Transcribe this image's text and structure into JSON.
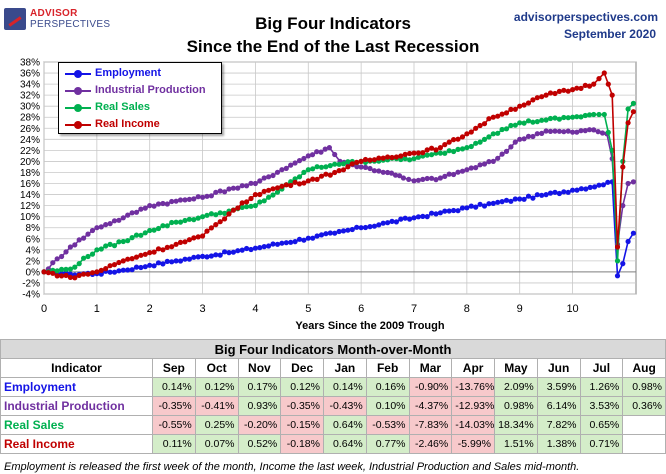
{
  "header": {
    "logo_line1": "ADVISOR",
    "logo_line2": "PERSPECTIVES",
    "title_line1": "Big Four Indicators",
    "title_line2": "Since the End of the Last Recession",
    "site": "advisorperspectives.com",
    "date": "September 2020"
  },
  "chart_data": {
    "type": "line",
    "xlabel": "Years Since the 2009 Trough",
    "ylabel": "",
    "xlim": [
      0,
      11.2
    ],
    "ylim": [
      -4,
      38
    ],
    "x_ticks": [
      0,
      1,
      2,
      3,
      4,
      5,
      6,
      7,
      8,
      9,
      10
    ],
    "y_ticks": [
      -4,
      -2,
      0,
      2,
      4,
      6,
      8,
      10,
      12,
      14,
      16,
      18,
      20,
      22,
      24,
      26,
      28,
      30,
      32,
      34,
      36,
      38
    ],
    "y_tick_format": "percent",
    "grid": true,
    "legend_position": "top-left",
    "series": [
      {
        "name": "Employment",
        "color": "#1414e6",
        "points": [
          [
            0,
            0
          ],
          [
            0.5,
            -0.4
          ],
          [
            1,
            -0.3
          ],
          [
            1.5,
            0.3
          ],
          [
            2,
            1.2
          ],
          [
            2.5,
            2
          ],
          [
            3,
            2.8
          ],
          [
            3.5,
            3.5
          ],
          [
            4,
            4.3
          ],
          [
            4.5,
            5.2
          ],
          [
            5,
            6.1
          ],
          [
            5.5,
            7
          ],
          [
            6,
            8
          ],
          [
            6.5,
            8.9
          ],
          [
            7,
            9.8
          ],
          [
            7.5,
            10.7
          ],
          [
            8,
            11.6
          ],
          [
            8.5,
            12.4
          ],
          [
            9,
            13.2
          ],
          [
            9.5,
            14
          ],
          [
            10,
            14.8
          ],
          [
            10.5,
            15.7
          ],
          [
            10.75,
            16.3
          ],
          [
            10.85,
            -0.7
          ],
          [
            10.95,
            1.5
          ],
          [
            11.05,
            5.5
          ],
          [
            11.15,
            7
          ]
        ]
      },
      {
        "name": "Industrial Production",
        "color": "#7030a0",
        "points": [
          [
            0,
            0
          ],
          [
            0.5,
            4.5
          ],
          [
            1,
            8
          ],
          [
            1.5,
            9.8
          ],
          [
            2,
            12
          ],
          [
            2.5,
            12.8
          ],
          [
            3,
            13.5
          ],
          [
            3.5,
            15
          ],
          [
            4,
            16
          ],
          [
            4.5,
            18.5
          ],
          [
            5,
            21
          ],
          [
            5.4,
            22.5
          ],
          [
            5.6,
            20
          ],
          [
            6,
            19
          ],
          [
            6.5,
            18
          ],
          [
            6.8,
            17
          ],
          [
            7,
            16.5
          ],
          [
            7.5,
            17
          ],
          [
            8,
            18.5
          ],
          [
            8.5,
            20
          ],
          [
            9,
            24
          ],
          [
            9.5,
            25.5
          ],
          [
            10,
            25.3
          ],
          [
            10.4,
            25.7
          ],
          [
            10.65,
            25
          ],
          [
            10.75,
            20.5
          ],
          [
            10.85,
            5
          ],
          [
            10.95,
            12
          ],
          [
            11.05,
            16
          ],
          [
            11.15,
            16.3
          ]
        ]
      },
      {
        "name": "Real Sales",
        "color": "#00b050",
        "points": [
          [
            0,
            0
          ],
          [
            0.5,
            0.5
          ],
          [
            1,
            4
          ],
          [
            1.5,
            5.5
          ],
          [
            2,
            7.5
          ],
          [
            2.5,
            9
          ],
          [
            3,
            10
          ],
          [
            3.5,
            11
          ],
          [
            4,
            12
          ],
          [
            4.5,
            15
          ],
          [
            5,
            18.5
          ],
          [
            5.5,
            19.5
          ],
          [
            6,
            20
          ],
          [
            6.5,
            20.3
          ],
          [
            7,
            20.5
          ],
          [
            7.5,
            21.5
          ],
          [
            8,
            22.5
          ],
          [
            8.5,
            25
          ],
          [
            9,
            27
          ],
          [
            9.5,
            27.5
          ],
          [
            10,
            28
          ],
          [
            10.4,
            28.5
          ],
          [
            10.6,
            28.5
          ],
          [
            10.75,
            22
          ],
          [
            10.85,
            2
          ],
          [
            10.95,
            20
          ],
          [
            11.05,
            29.5
          ],
          [
            11.15,
            30.5
          ]
        ]
      },
      {
        "name": "Real Income",
        "color": "#c00000",
        "points": [
          [
            0,
            0
          ],
          [
            0.5,
            -1
          ],
          [
            1,
            0
          ],
          [
            1.5,
            2
          ],
          [
            2,
            3.5
          ],
          [
            2.5,
            5
          ],
          [
            3,
            6.5
          ],
          [
            3.5,
            10.5
          ],
          [
            4,
            14
          ],
          [
            4.5,
            15.5
          ],
          [
            5,
            16.5
          ],
          [
            5.5,
            18
          ],
          [
            6,
            20
          ],
          [
            6.5,
            20.8
          ],
          [
            7,
            21.5
          ],
          [
            7.5,
            22.5
          ],
          [
            8,
            25
          ],
          [
            8.5,
            28
          ],
          [
            9,
            30
          ],
          [
            9.5,
            32
          ],
          [
            10,
            33
          ],
          [
            10.4,
            34
          ],
          [
            10.6,
            36
          ],
          [
            10.75,
            32
          ],
          [
            10.85,
            4.5
          ],
          [
            10.95,
            19
          ],
          [
            11.05,
            27
          ],
          [
            11.15,
            29
          ]
        ]
      }
    ]
  },
  "table": {
    "title": "Big Four Indicators Month-over-Month",
    "indicator_header": "Indicator",
    "months": [
      "Sep",
      "Oct",
      "Nov",
      "Dec",
      "Jan",
      "Feb",
      "Mar",
      "Apr",
      "May",
      "Jun",
      "Jul",
      "Aug"
    ],
    "rows": [
      {
        "name": "Employment",
        "color": "#1414e6",
        "values": [
          "0.14%",
          "0.12%",
          "0.17%",
          "0.12%",
          "0.14%",
          "0.16%",
          "-0.90%",
          "-13.76%",
          "2.09%",
          "3.59%",
          "1.26%",
          "0.98%"
        ]
      },
      {
        "name": "Industrial Production",
        "color": "#7030a0",
        "values": [
          "-0.35%",
          "-0.41%",
          "0.93%",
          "-0.35%",
          "-0.43%",
          "0.10%",
          "-4.37%",
          "-12.93%",
          "0.98%",
          "6.14%",
          "3.53%",
          "0.36%"
        ]
      },
      {
        "name": "Real Sales",
        "color": "#00b050",
        "values": [
          "-0.55%",
          "0.25%",
          "-0.20%",
          "-0.15%",
          "0.64%",
          "-0.53%",
          "-7.83%",
          "-14.03%",
          "18.34%",
          "7.82%",
          "0.65%",
          ""
        ]
      },
      {
        "name": "Real Income",
        "color": "#c00000",
        "values": [
          "0.11%",
          "0.07%",
          "0.52%",
          "-0.18%",
          "0.64%",
          "0.77%",
          "-2.46%",
          "-5.99%",
          "1.51%",
          "1.38%",
          "0.71%",
          ""
        ]
      }
    ]
  },
  "footnote": "Employment is released the first week of the month, Income the last week, Industrial Production and Sales mid-month."
}
